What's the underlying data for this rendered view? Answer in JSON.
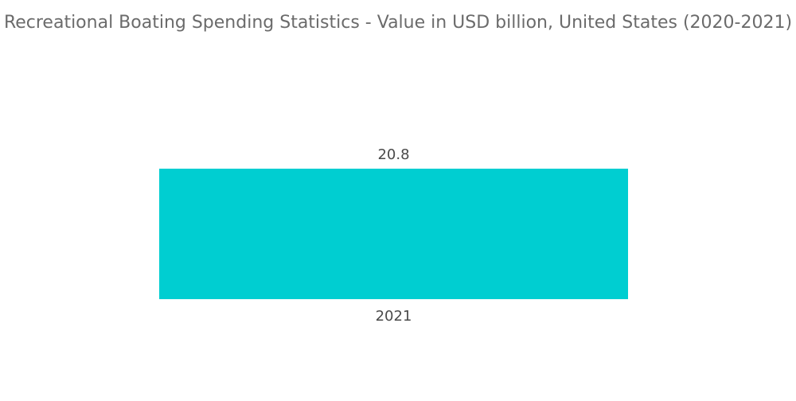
{
  "chart_data": {
    "type": "bar",
    "title": "Recreational Boating Spending Statistics - Value in USD billion, United States (2020-2021)",
    "categories": [
      "2021"
    ],
    "values": [
      20.8
    ],
    "value_labels": [
      "20.8"
    ],
    "xlabel": "",
    "ylabel": "",
    "ylim": [
      0,
      20.8
    ],
    "grid": false,
    "legend": "none",
    "bar_color": "#00ced1"
  }
}
